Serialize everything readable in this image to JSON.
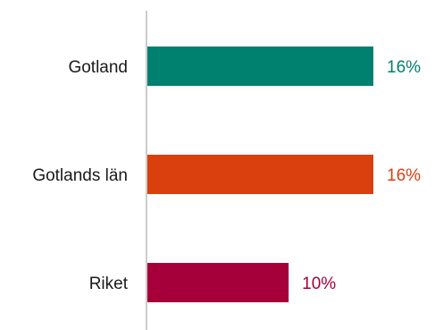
{
  "chart_data": {
    "type": "bar",
    "orientation": "horizontal",
    "categories": [
      "Gotland",
      "Gotlands län",
      "Riket"
    ],
    "values": [
      16,
      16,
      10
    ],
    "value_labels": [
      "16%",
      "16%",
      "10%"
    ],
    "colors": [
      "#00806e",
      "#d9400e",
      "#a6003a"
    ],
    "axis_color": "#cccccc",
    "title": "",
    "xlabel": "",
    "ylabel": "",
    "xlim": [
      0,
      16
    ],
    "grid": false,
    "legend": "none"
  }
}
